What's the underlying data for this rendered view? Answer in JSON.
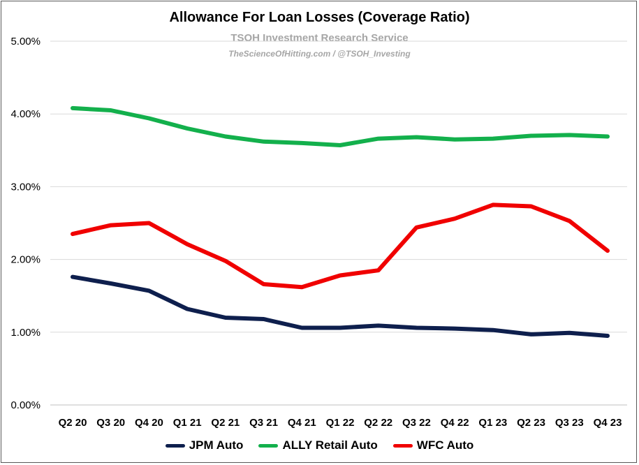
{
  "chart_data": {
    "type": "line",
    "title": "Allowance For Loan Losses (Coverage Ratio)",
    "subtitle": "TSOH Investment Research Service",
    "source": "TheScienceOfHitting.com / @TSOH_Investing",
    "categories": [
      "Q2 20",
      "Q3 20",
      "Q4 20",
      "Q1 21",
      "Q2 21",
      "Q3 21",
      "Q4 21",
      "Q1 22",
      "Q2 22",
      "Q3 22",
      "Q4 22",
      "Q1 23",
      "Q2 23",
      "Q3 23",
      "Q4 23"
    ],
    "ylim": [
      0,
      5
    ],
    "yticks": [
      0,
      1,
      2,
      3,
      4,
      5
    ],
    "ytick_labels": [
      "0.00%",
      "1.00%",
      "2.00%",
      "3.00%",
      "4.00%",
      "5.00%"
    ],
    "grid": true,
    "legend_position": "bottom",
    "series": [
      {
        "name": "JPM Auto",
        "color": "#0e1f4d",
        "values": [
          1.76,
          1.67,
          1.57,
          1.32,
          1.2,
          1.18,
          1.06,
          1.06,
          1.09,
          1.06,
          1.05,
          1.03,
          0.97,
          0.99,
          0.95
        ]
      },
      {
        "name": "ALLY Retail Auto",
        "color": "#13b04c",
        "values": [
          4.08,
          4.05,
          3.94,
          3.8,
          3.69,
          3.62,
          3.6,
          3.57,
          3.66,
          3.68,
          3.65,
          3.66,
          3.7,
          3.71,
          3.69
        ]
      },
      {
        "name": "WFC Auto",
        "color": "#f00000",
        "values": [
          2.35,
          2.47,
          2.5,
          2.21,
          1.98,
          1.66,
          1.62,
          1.78,
          1.85,
          2.44,
          2.56,
          2.75,
          2.73,
          2.53,
          2.12
        ]
      }
    ]
  }
}
